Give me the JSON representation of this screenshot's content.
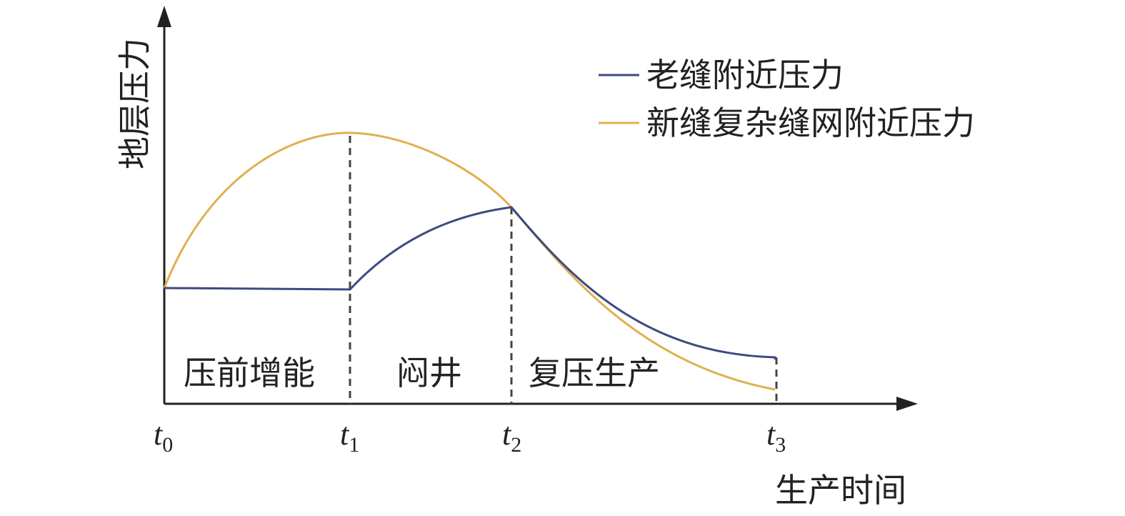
{
  "axes": {
    "y_label": "地层压力",
    "x_label": "生产时间"
  },
  "legend": [
    {
      "label": "老缝附近压力",
      "color": "#3f4a7e"
    },
    {
      "label": "新缝复杂缝网附近压力",
      "color": "#e0b050"
    }
  ],
  "phases": [
    "压前增能",
    "闷井",
    "复压生产"
  ],
  "ticks": [
    {
      "symbol": "t",
      "subscript": "0"
    },
    {
      "symbol": "t",
      "subscript": "1"
    },
    {
      "symbol": "t",
      "subscript": "2"
    },
    {
      "symbol": "t",
      "subscript": "3"
    }
  ]
}
